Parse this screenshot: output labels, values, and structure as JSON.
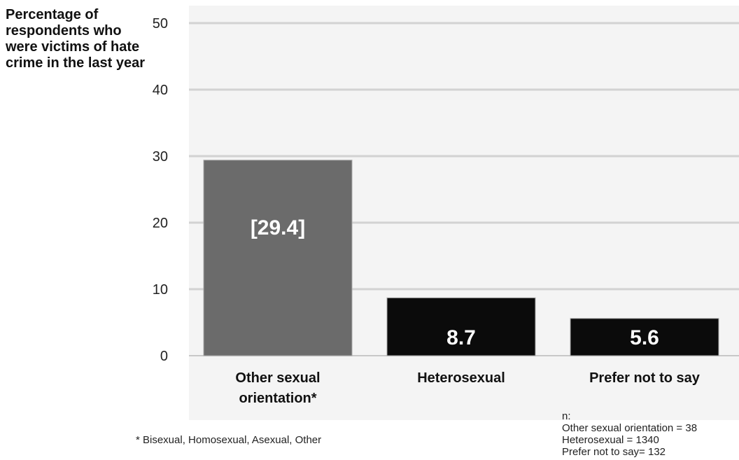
{
  "chart_data": {
    "type": "bar",
    "ylabel": "Percentage of respondents who were victims of hate crime in the last year",
    "xlabel": "",
    "ylim": [
      0,
      50
    ],
    "yticks": [
      0,
      10,
      20,
      30,
      40,
      50
    ],
    "grid": true,
    "categories": [
      "Other sexual orientation*",
      "Heterosexual",
      "Prefer not to say"
    ],
    "values": [
      29.4,
      8.7,
      5.6
    ],
    "data_labels": [
      "[29.4]",
      "8.7",
      "5.6"
    ],
    "colors": [
      "#6b6b6b",
      "#0b0b0b",
      "#0b0b0b"
    ]
  },
  "notes": {
    "footnote": "* Bisexual, Homosexual, Asexual, Other",
    "n_title": "n:",
    "n_lines": [
      "Other sexual orientation = 38",
      "Heterosexual = 1340",
      "Prefer not to say= 132"
    ]
  }
}
